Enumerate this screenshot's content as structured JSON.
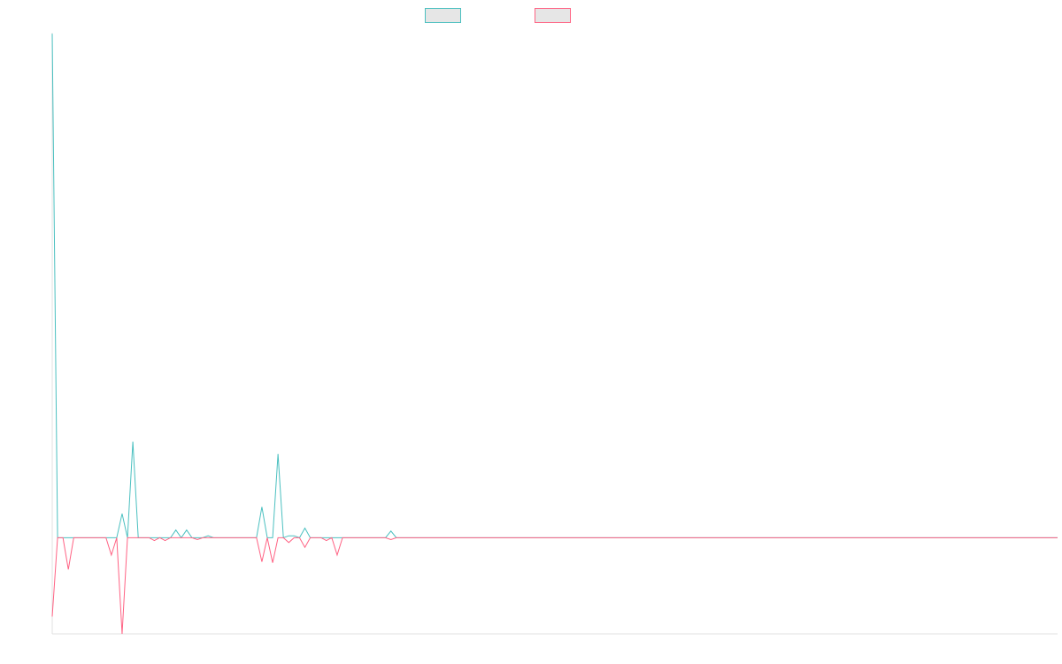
{
  "chart_data": {
    "type": "line",
    "title": "",
    "xlabel": "",
    "ylabel": "",
    "grid": false,
    "legend_position": "top-center",
    "colors": {
      "series_a": "#4bc0c0",
      "series_b": "#ff6384",
      "legend_fill": "#e6e6e6",
      "axis": "#e0e0e0"
    },
    "ylim": [
      -100,
      525
    ],
    "points_count": 188,
    "series": [
      {
        "values_sparse": [
          [
            0,
            524
          ],
          [
            1,
            0
          ],
          [
            10,
            0
          ],
          [
            11,
            0
          ],
          [
            13,
            25
          ],
          [
            14,
            0
          ],
          [
            15,
            100
          ],
          [
            16,
            0
          ],
          [
            17,
            0
          ],
          [
            18,
            0
          ],
          [
            19,
            0
          ],
          [
            20,
            0
          ],
          [
            21,
            0
          ],
          [
            22,
            0
          ],
          [
            23,
            8
          ],
          [
            24,
            0
          ],
          [
            25,
            8
          ],
          [
            26,
            0
          ],
          [
            28,
            0
          ],
          [
            29,
            2
          ],
          [
            30,
            0
          ],
          [
            38,
            0
          ],
          [
            39,
            32
          ],
          [
            40,
            0
          ],
          [
            41,
            0
          ],
          [
            42,
            87
          ],
          [
            43,
            0
          ],
          [
            44,
            2
          ],
          [
            45,
            2
          ],
          [
            46,
            0
          ],
          [
            47,
            10
          ],
          [
            48,
            0
          ],
          [
            50,
            0
          ],
          [
            51,
            0
          ],
          [
            52,
            0
          ],
          [
            53,
            0
          ],
          [
            54,
            0
          ],
          [
            62,
            0
          ],
          [
            63,
            7
          ],
          [
            64,
            0
          ],
          [
            80,
            0
          ],
          [
            81,
            0
          ],
          [
            82,
            0
          ]
        ]
      },
      {
        "values_sparse": [
          [
            0,
            -82
          ],
          [
            1,
            0
          ],
          [
            2,
            0
          ],
          [
            3,
            -33
          ],
          [
            4,
            0
          ],
          [
            10,
            0
          ],
          [
            11,
            -18
          ],
          [
            12,
            0
          ],
          [
            13,
            -100
          ],
          [
            14,
            0
          ],
          [
            18,
            0
          ],
          [
            19,
            -3
          ],
          [
            20,
            0
          ],
          [
            21,
            -3
          ],
          [
            22,
            0
          ],
          [
            23,
            0
          ],
          [
            24,
            0
          ],
          [
            26,
            0
          ],
          [
            27,
            -2
          ],
          [
            28,
            0
          ],
          [
            38,
            0
          ],
          [
            39,
            -25
          ],
          [
            40,
            0
          ],
          [
            41,
            -26
          ],
          [
            42,
            0
          ],
          [
            43,
            0
          ],
          [
            44,
            -5
          ],
          [
            45,
            0
          ],
          [
            46,
            0
          ],
          [
            47,
            -10
          ],
          [
            48,
            0
          ],
          [
            50,
            0
          ],
          [
            51,
            -3
          ],
          [
            52,
            0
          ],
          [
            53,
            -18
          ],
          [
            54,
            0
          ],
          [
            62,
            0
          ],
          [
            63,
            -2
          ],
          [
            64,
            0
          ],
          [
            80,
            0
          ],
          [
            81,
            0
          ],
          [
            82,
            0
          ]
        ]
      }
    ]
  }
}
